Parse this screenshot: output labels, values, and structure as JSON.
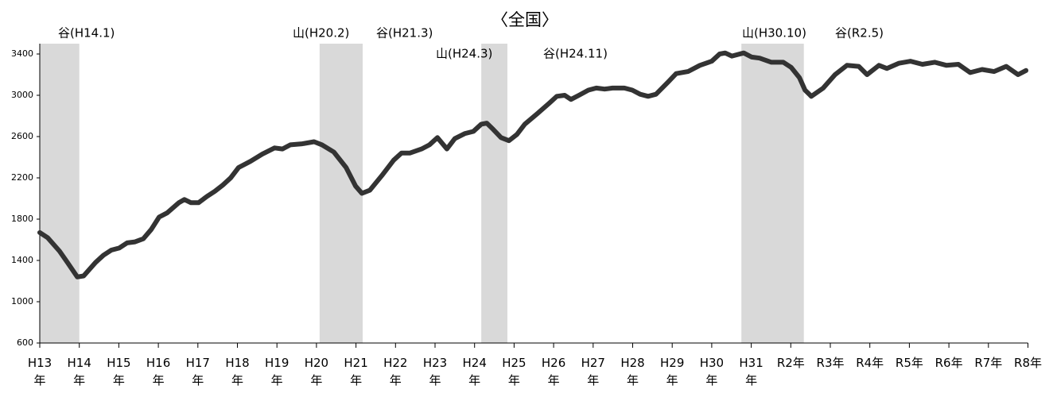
{
  "chart_data": {
    "type": "line",
    "title": "〈全国〉",
    "xlim": [
      2001,
      2026
    ],
    "xticks": [
      {
        "value": 2001,
        "label": "H13年"
      },
      {
        "value": 2002,
        "label": "H14年"
      },
      {
        "value": 2003,
        "label": "H15年"
      },
      {
        "value": 2004,
        "label": "H16年"
      },
      {
        "value": 2005,
        "label": "H17年"
      },
      {
        "value": 2006,
        "label": "H18年"
      },
      {
        "value": 2007,
        "label": "H19年"
      },
      {
        "value": 2008,
        "label": "H20年"
      },
      {
        "value": 2009,
        "label": "H21年"
      },
      {
        "value": 2010,
        "label": "H22年"
      },
      {
        "value": 2011,
        "label": "H23年"
      },
      {
        "value": 2012,
        "label": "H24年"
      },
      {
        "value": 2013,
        "label": "H25年"
      },
      {
        "value": 2014,
        "label": "H26年"
      },
      {
        "value": 2015,
        "label": "H27年"
      },
      {
        "value": 2016,
        "label": "H28年"
      },
      {
        "value": 2017,
        "label": "H29年"
      },
      {
        "value": 2018,
        "label": "H30年"
      },
      {
        "value": 2019,
        "label": "H31年"
      },
      {
        "value": 2020,
        "label": "R2年"
      },
      {
        "value": 2021,
        "label": "R3年"
      },
      {
        "value": 2022,
        "label": "R4年"
      },
      {
        "value": 2023,
        "label": "R5年"
      },
      {
        "value": 2024,
        "label": "R6年"
      },
      {
        "value": 2025,
        "label": "R7年"
      },
      {
        "value": 2026,
        "label": "R8年"
      }
    ],
    "ylim": [
      600,
      3500
    ],
    "yticks": [
      600,
      1000,
      1400,
      1800,
      2200,
      2600,
      3000,
      3400
    ],
    "recessions": [
      {
        "start": 2001.0,
        "end": 2002.0
      },
      {
        "start": 2008.08,
        "end": 2009.17
      },
      {
        "start": 2012.17,
        "end": 2012.83
      },
      {
        "start": 2018.75,
        "end": 2020.33
      }
    ],
    "annotations": [
      "谷(H14.1)",
      "山(H20.2)",
      "谷(H21.3)",
      "山(H24.3)",
      "谷(H24.11)",
      "山(H30.10)",
      "谷(R2.5)"
    ],
    "series": [
      {
        "color": "#333333",
        "x": [
          2001.0,
          2001.2,
          2001.5,
          2001.7,
          2001.95,
          2002.11,
          2002.41,
          2002.61,
          2002.81,
          2003.01,
          2003.21,
          2003.41,
          2003.62,
          2003.82,
          2004.02,
          2004.22,
          2004.52,
          2004.66,
          2004.82,
          2005.02,
          2005.23,
          2005.43,
          2005.63,
          2005.83,
          2006.03,
          2006.33,
          2006.63,
          2006.94,
          2007.14,
          2007.34,
          2007.64,
          2007.94,
          2008.14,
          2008.44,
          2008.75,
          2008.99,
          2009.15,
          2009.35,
          2009.65,
          2009.95,
          2010.15,
          2010.36,
          2010.66,
          2010.86,
          2011.06,
          2011.3,
          2011.5,
          2011.76,
          2011.97,
          2012.17,
          2012.31,
          2012.47,
          2012.67,
          2012.87,
          2013.07,
          2013.27,
          2013.58,
          2013.88,
          2014.08,
          2014.28,
          2014.44,
          2014.64,
          2014.88,
          2015.08,
          2015.29,
          2015.49,
          2015.79,
          2015.99,
          2016.19,
          2016.39,
          2016.59,
          2016.9,
          2017.1,
          2017.4,
          2017.7,
          2018.0,
          2018.2,
          2018.34,
          2018.51,
          2018.81,
          2019.01,
          2019.21,
          2019.51,
          2019.81,
          2020.01,
          2020.22,
          2020.36,
          2020.52,
          2020.82,
          2021.12,
          2021.42,
          2021.72,
          2021.93,
          2022.23,
          2022.43,
          2022.73,
          2023.03,
          2023.33,
          2023.64,
          2023.94,
          2024.24,
          2024.54,
          2024.84,
          2025.14,
          2025.45,
          2025.75,
          2025.95
        ],
        "values": [
          1670,
          1620,
          1490,
          1380,
          1240,
          1250,
          1380,
          1450,
          1500,
          1520,
          1570,
          1580,
          1610,
          1700,
          1820,
          1860,
          1960,
          1990,
          1960,
          1960,
          2020,
          2070,
          2130,
          2200,
          2300,
          2360,
          2430,
          2490,
          2480,
          2520,
          2530,
          2550,
          2520,
          2450,
          2300,
          2120,
          2050,
          2080,
          2220,
          2370,
          2440,
          2440,
          2480,
          2520,
          2590,
          2480,
          2580,
          2630,
          2650,
          2720,
          2730,
          2670,
          2590,
          2560,
          2620,
          2720,
          2820,
          2920,
          2990,
          3000,
          2960,
          3000,
          3050,
          3070,
          3060,
          3070,
          3070,
          3050,
          3010,
          2990,
          3010,
          3130,
          3210,
          3230,
          3290,
          3330,
          3400,
          3410,
          3380,
          3410,
          3370,
          3360,
          3320,
          3320,
          3270,
          3170,
          3050,
          2990,
          3070,
          3200,
          3290,
          3280,
          3200,
          3290,
          3260,
          3310,
          3330,
          3300,
          3320,
          3290,
          3300,
          3220,
          3250,
          3230,
          3280,
          3200,
          3240
        ]
      }
    ]
  }
}
